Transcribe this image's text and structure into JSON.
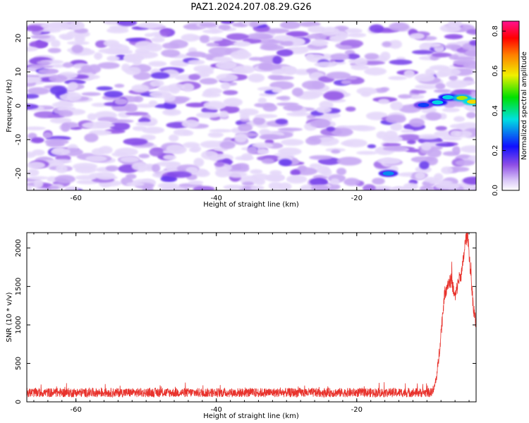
{
  "title": "PAZ1.2024.207.08.29.G26",
  "chart_data": [
    {
      "type": "heatmap",
      "title": "PAZ1.2024.207.08.29.G26",
      "xlabel": "Height of straight line (km)",
      "ylabel": "Frequency (Hz)",
      "xlim": [
        -67,
        -3
      ],
      "ylim": [
        -25,
        25
      ],
      "xticks": [
        -60,
        -40,
        -20
      ],
      "yticks": [
        -20,
        -10,
        0,
        10,
        20
      ],
      "colorbar": {
        "label": "Normalized spectral amplitude",
        "range": [
          0.0,
          0.85
        ],
        "ticks": [
          "0.0",
          "0.2",
          "0.4",
          "0.6",
          "0.8"
        ],
        "colormap": "rainbow (white-lavender-violet-blue-cyan-green-yellow-orange-red-magenta)"
      },
      "background_level": 0.1,
      "features": [
        {
          "x": -8.5,
          "y": 1.0,
          "level": 0.35
        },
        {
          "x": -7.0,
          "y": 2.5,
          "level": 0.35
        },
        {
          "x": -5.0,
          "y": 2.3,
          "level": 0.55
        },
        {
          "x": -3.5,
          "y": 1.2,
          "level": 0.6
        },
        {
          "x": -10.5,
          "y": 0.2,
          "level": 0.25
        },
        {
          "x": -15.5,
          "y": -20.0,
          "level": 0.3
        }
      ]
    },
    {
      "type": "line",
      "xlabel": "Height of straight line (km)",
      "ylabel": "SNR (10 * v/v)",
      "xlim": [
        -67,
        -3
      ],
      "ylim": [
        0,
        2200
      ],
      "xticks": [
        -60,
        -40,
        -20
      ],
      "yticks": [
        0,
        500,
        1000,
        1500,
        2000
      ],
      "color": "#e8322c",
      "baseline_snr": 120,
      "noise_amplitude": 60,
      "profile": [
        {
          "x": -67,
          "y": 120
        },
        {
          "x": -9.5,
          "y": 120
        },
        {
          "x": -9.0,
          "y": 160
        },
        {
          "x": -8.5,
          "y": 400
        },
        {
          "x": -8.0,
          "y": 900
        },
        {
          "x": -7.5,
          "y": 1400
        },
        {
          "x": -7.0,
          "y": 1550
        },
        {
          "x": -6.5,
          "y": 1580
        },
        {
          "x": -6.0,
          "y": 1350
        },
        {
          "x": -5.5,
          "y": 1580
        },
        {
          "x": -5.0,
          "y": 1700
        },
        {
          "x": -4.5,
          "y": 2100
        },
        {
          "x": -4.2,
          "y": 2180
        },
        {
          "x": -3.8,
          "y": 1700
        },
        {
          "x": -3.4,
          "y": 1250
        },
        {
          "x": -3.0,
          "y": 1000
        }
      ]
    }
  ]
}
